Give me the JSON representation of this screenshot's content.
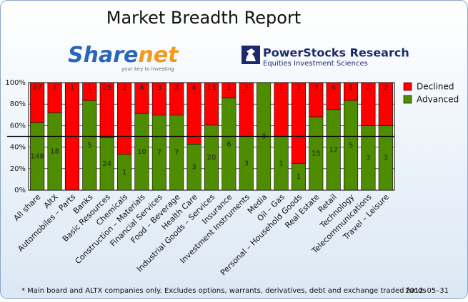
{
  "logos": {
    "sharenet_main": "Share",
    "sharenet_accent": "net",
    "sharenet_tagline": "your key to investing",
    "powerstocks_name": "PowerStocks  Research",
    "powerstocks_tagline": "Equities Investment Sciences"
  },
  "chart_data": {
    "type": "bar",
    "stacked": "percent",
    "title": "Market Breadth Report",
    "categories": [
      "All share",
      "AltX",
      "Automobiles – Parts",
      "Banks",
      "Basic Resources",
      "Chemicals",
      "Construction – Materials",
      "Financial Services",
      "Food – Beverage",
      "Health Care",
      "Industrial Goods – Services",
      "Insurance",
      "Investment Instruments",
      "Media",
      "Oil – Gas",
      "Personal – Household Goods",
      "Real Estate",
      "Retail",
      "Technology",
      "Telecommunications",
      "Travel – Leisure"
    ],
    "series": [
      {
        "name": "Declined",
        "color": "#ff0000",
        "values": [
          87,
          7,
          1,
          1,
          25,
          2,
          4,
          3,
          3,
          4,
          13,
          1,
          3,
          0,
          1,
          3,
          7,
          4,
          1,
          2,
          2
        ]
      },
      {
        "name": "Advanced",
        "color": "#4e8c00",
        "values": [
          148,
          18,
          0,
          5,
          24,
          1,
          10,
          7,
          7,
          3,
          20,
          6,
          3,
          3,
          1,
          1,
          15,
          12,
          5,
          3,
          3
        ]
      }
    ],
    "ylim": [
      0,
      100
    ],
    "yticks": [
      {
        "value": 0,
        "label": "0%"
      },
      {
        "value": 20,
        "label": "20%"
      },
      {
        "value": 40,
        "label": "40%"
      },
      {
        "value": 60,
        "label": "60%"
      },
      {
        "value": 80,
        "label": "80%"
      },
      {
        "value": 100,
        "label": "100%"
      }
    ],
    "grid": true,
    "reference_line": 50,
    "legend": "right",
    "footnote": "* Main board and ALTX companies only. Excludes options, warrants, derivatives, debt and exchange traded funds",
    "date": "2012–05–31"
  }
}
